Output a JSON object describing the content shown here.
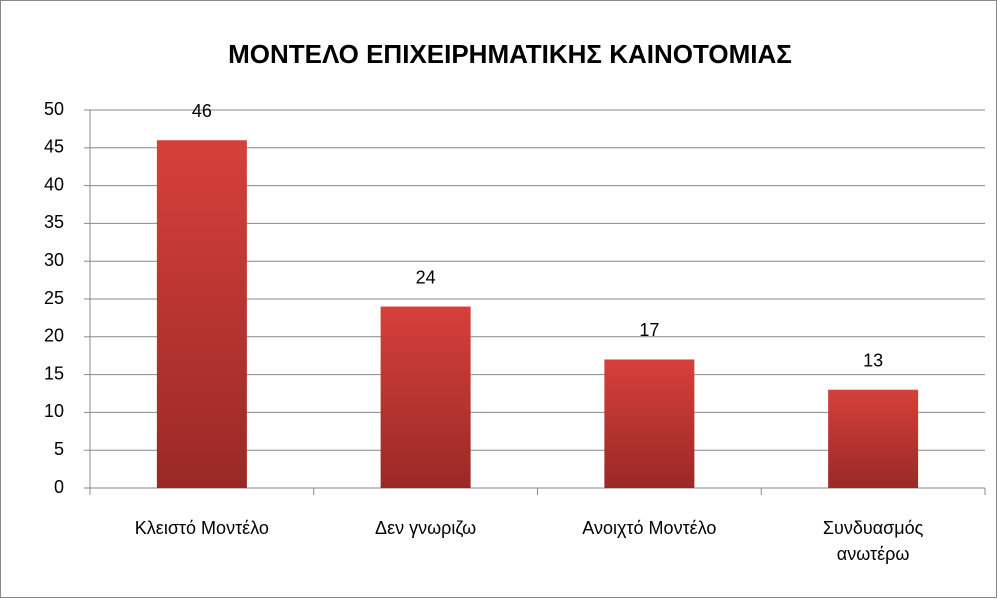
{
  "chart_data": {
    "type": "bar",
    "title": "ΜΟΝΤΕΛΟ ΕΠΙΧΕΙΡΗΜΑΤΙΚΗΣ ΚΑΙΝΟΤΟΜΙΑΣ",
    "categories": [
      "Κλειστό Μοντέλο",
      "Δεν γνωριζω",
      "Ανοιχτό Μοντέλο",
      "Συνδυασμός ανωτέρω"
    ],
    "values": [
      46,
      24,
      17,
      13
    ],
    "color": "#d6403b",
    "ylim": [
      0,
      50
    ],
    "yticks": [
      0,
      5,
      10,
      15,
      20,
      25,
      30,
      35,
      40,
      45,
      50
    ],
    "grid": true
  }
}
